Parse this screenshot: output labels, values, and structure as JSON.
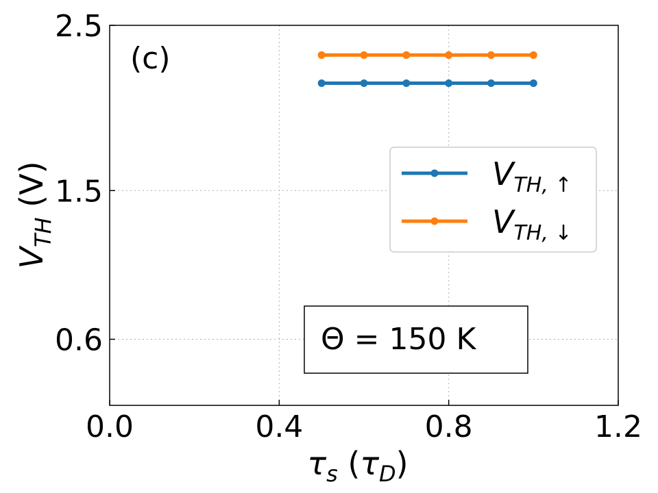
{
  "chart_data": {
    "type": "line",
    "panel_label": "(c)",
    "xlabel_main": "τ",
    "xlabel_sub": "s",
    "xlabel_paren_main": "τ",
    "xlabel_paren_sub": "D",
    "ylabel_main": "V",
    "ylabel_sub": "TH",
    "ylabel_unit": "(V)",
    "xlim": [
      0.0,
      1.2
    ],
    "ylim": [
      0.2,
      2.5
    ],
    "xticks": [
      0.0,
      0.4,
      0.8,
      1.2
    ],
    "xtick_labels": [
      "0.0",
      "0.4",
      "0.8",
      "1.2"
    ],
    "yticks": [
      0.6,
      1.5,
      2.5
    ],
    "ytick_labels": [
      "0.6",
      "1.5",
      "2.5"
    ],
    "grid": true,
    "legend_position": "center-right",
    "series": [
      {
        "name": "V_TH,↑",
        "label_main": "V",
        "label_sub": "TH, ↑",
        "color": "#1f77b4",
        "x": [
          0.5,
          0.6,
          0.7,
          0.8,
          0.9,
          1.0
        ],
        "y": [
          2.15,
          2.15,
          2.15,
          2.15,
          2.15,
          2.15
        ]
      },
      {
        "name": "V_TH,↓",
        "label_main": "V",
        "label_sub": "TH, ↓",
        "color": "#ff7f0e",
        "x": [
          0.5,
          0.6,
          0.7,
          0.8,
          0.9,
          1.0
        ],
        "y": [
          2.32,
          2.32,
          2.32,
          2.32,
          2.32,
          2.32
        ]
      }
    ],
    "annotation": "Θ = 150 K"
  }
}
